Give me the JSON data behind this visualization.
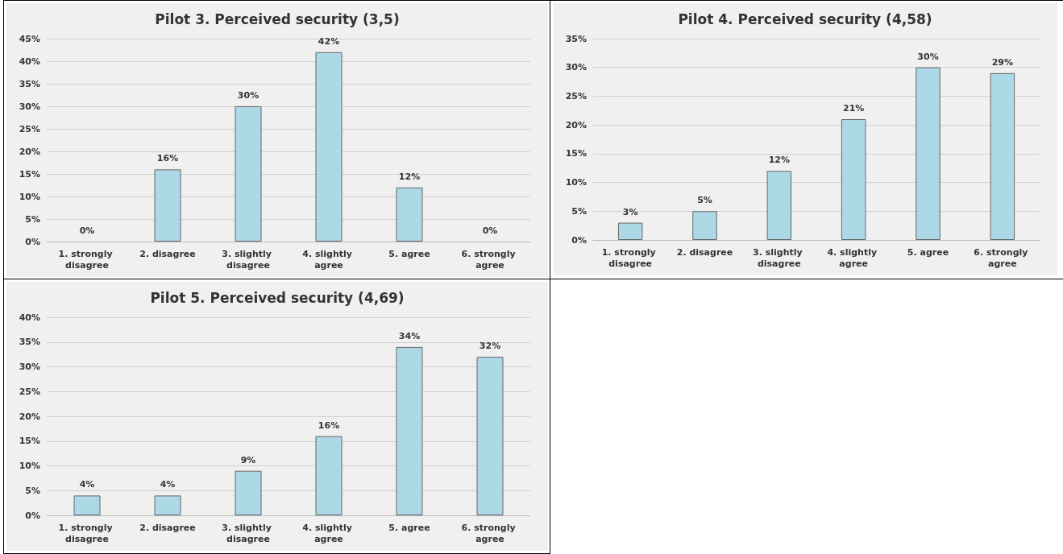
{
  "chart_data": [
    {
      "type": "bar",
      "title": "Pilot 3. Perceived security (3,5)",
      "categories": [
        "1. strongly disagree",
        "2. disagree",
        "3. slightly disagree",
        "4. slightly agree",
        "5. agree",
        "6. strongly agree"
      ],
      "values": [
        0,
        16,
        30,
        42,
        12,
        0
      ],
      "value_labels": [
        "0%",
        "16%",
        "30%",
        "42%",
        "12%",
        "0%"
      ],
      "color": "#add8e6",
      "ylim": [
        0,
        45
      ],
      "yticks": [
        {
          "value": 0,
          "label": "0%"
        },
        {
          "value": 5,
          "label": "5%"
        },
        {
          "value": 10,
          "label": "10%"
        },
        {
          "value": 15,
          "label": "15%"
        },
        {
          "value": 20,
          "label": "20%"
        },
        {
          "value": 25,
          "label": "25%"
        },
        {
          "value": 30,
          "label": "30%"
        },
        {
          "value": 35,
          "label": "35%"
        },
        {
          "value": 40,
          "label": "40%"
        },
        {
          "value": 45,
          "label": "45%"
        }
      ],
      "grid": "y"
    },
    {
      "type": "bar",
      "title": "Pilot 4. Perceived security (4,58)",
      "categories": [
        "1. strongly disagree",
        "2. disagree",
        "3. slightly disagree",
        "4. slightly agree",
        "5. agree",
        "6. strongly agree"
      ],
      "values": [
        3,
        5,
        12,
        21,
        30,
        29
      ],
      "value_labels": [
        "3%",
        "5%",
        "12%",
        "21%",
        "30%",
        "29%"
      ],
      "color": "#add8e6",
      "ylim": [
        0,
        35
      ],
      "yticks": [
        {
          "value": 0,
          "label": "0%"
        },
        {
          "value": 5,
          "label": "5%"
        },
        {
          "value": 10,
          "label": "10%"
        },
        {
          "value": 15,
          "label": "15%"
        },
        {
          "value": 20,
          "label": "20%"
        },
        {
          "value": 25,
          "label": "25%"
        },
        {
          "value": 30,
          "label": "30%"
        },
        {
          "value": 35,
          "label": "35%"
        }
      ],
      "grid": "y"
    },
    {
      "type": "bar",
      "title": "Pilot 5. Perceived security (4,69)",
      "categories": [
        "1. strongly disagree",
        "2. disagree",
        "3. slightly disagree",
        "4. slightly agree",
        "5. agree",
        "6. strongly agree"
      ],
      "values": [
        4,
        4,
        9,
        16,
        34,
        32
      ],
      "value_labels": [
        "4%",
        "4%",
        "9%",
        "16%",
        "34%",
        "32%"
      ],
      "color": "#add8e6",
      "ylim": [
        0,
        40
      ],
      "yticks": [
        {
          "value": 0,
          "label": "0%"
        },
        {
          "value": 5,
          "label": "5%"
        },
        {
          "value": 10,
          "label": "10%"
        },
        {
          "value": 15,
          "label": "15%"
        },
        {
          "value": 20,
          "label": "20%"
        },
        {
          "value": 25,
          "label": "25%"
        },
        {
          "value": 30,
          "label": "30%"
        },
        {
          "value": 35,
          "label": "35%"
        },
        {
          "value": 40,
          "label": "40%"
        }
      ],
      "grid": "y"
    }
  ]
}
